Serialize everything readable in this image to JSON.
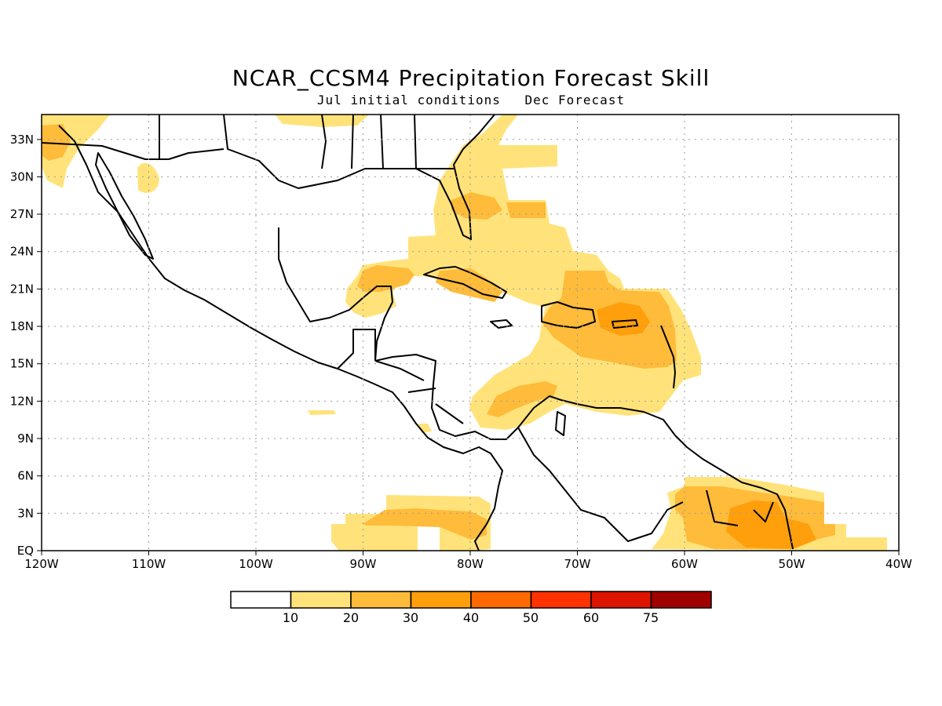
{
  "title": "NCAR_CCSM4 Precipitation Forecast Skill",
  "subtitle": {
    "left": "Jul initial conditions",
    "right": "Dec Forecast"
  },
  "map": {
    "lon_range": [
      -120,
      -40
    ],
    "lat_range": [
      0,
      35
    ],
    "x_ticks": [
      "120W",
      "110W",
      "100W",
      "90W",
      "80W",
      "70W",
      "60W",
      "50W",
      "40W"
    ],
    "y_ticks": [
      "EQ",
      "3N",
      "6N",
      "9N",
      "12N",
      "15N",
      "18N",
      "21N",
      "24N",
      "27N",
      "30N",
      "33N"
    ],
    "grid": "dotted"
  },
  "colorbar": {
    "colors": [
      "#ffffff",
      "#ffe37a",
      "#ffbb3a",
      "#ff9f0c",
      "#ff6a00",
      "#ff3200",
      "#dc1400",
      "#a00000"
    ],
    "labels": [
      "10",
      "20",
      "30",
      "40",
      "50",
      "60",
      "75"
    ]
  },
  "colors": {
    "level_10": "#ffe37a",
    "level_20": "#ffbb3a",
    "coast": "#000000"
  }
}
